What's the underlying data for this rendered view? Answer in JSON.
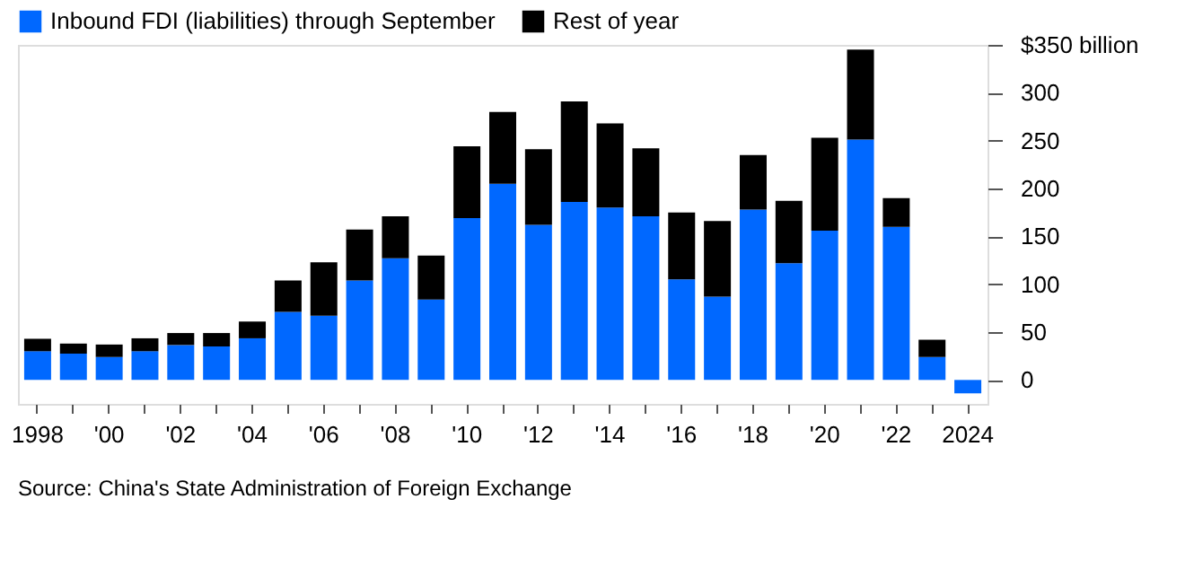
{
  "chart_data": {
    "type": "bar",
    "stacked": true,
    "categories": [
      "1998",
      null,
      "'00",
      null,
      "'02",
      null,
      "'04",
      null,
      "'06",
      null,
      "'08",
      null,
      "'10",
      null,
      "'12",
      null,
      "'14",
      null,
      "'16",
      null,
      "'18",
      null,
      "'20",
      null,
      "'22",
      null,
      "2024"
    ],
    "series": [
      {
        "name": "Inbound FDI (liabilities) through September",
        "color": "#0068ff",
        "values": [
          30,
          27.5,
          24,
          30,
          36.5,
          35,
          43.5,
          71,
          67,
          104,
          127,
          84,
          169,
          205,
          162,
          186,
          180,
          171,
          105,
          87,
          178,
          122,
          156,
          251,
          160,
          24,
          -14
        ]
      },
      {
        "name": "Rest of year",
        "color": "#000000",
        "values": [
          13,
          10.5,
          13,
          13.5,
          12.5,
          14,
          17.5,
          33,
          56,
          53,
          44,
          46,
          75,
          75,
          79,
          105,
          88,
          71,
          70,
          79,
          57,
          65,
          97,
          94,
          30,
          18,
          null
        ]
      }
    ],
    "ylim": [
      -25,
      350
    ],
    "yticks": [
      0,
      50,
      100,
      150,
      200,
      250,
      300,
      {
        "value": 350,
        "label": "$350 billion"
      }
    ],
    "grid": false,
    "legend": "top left",
    "annotations": [
      "Source: China's State Administration of Foreign Exchange"
    ]
  }
}
